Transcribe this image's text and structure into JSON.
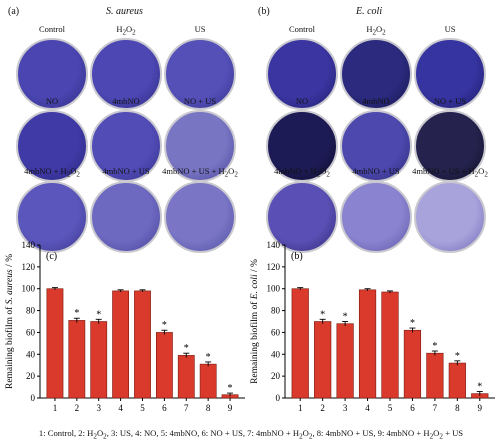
{
  "panels": [
    {
      "letter": "(a)",
      "title": "S. aureus",
      "wells": [
        {
          "label": "Control",
          "color": "#4a45b0",
          "edge": "#2f2c86"
        },
        {
          "label": "H2O2",
          "label_html": "H<sub>2</sub>O<sub>2</sub>",
          "color": "#4c47b3",
          "edge": "#2e2b82"
        },
        {
          "label": "US",
          "color": "#5550b8",
          "edge": "#34318c"
        },
        {
          "label": "NO",
          "color": "#3f3aa6",
          "edge": "#2a277d"
        },
        {
          "label": "4mbNO",
          "color": "#514cb6",
          "edge": "#34308a"
        },
        {
          "label": "NO + US",
          "color": "#7875c2",
          "edge": "#4a46a0"
        },
        {
          "label": "4mbNO + H2O2",
          "label_html": "4mbNO + H<sub>2</sub>O<sub>2</sub>",
          "color": "#5b56bb",
          "edge": "#3b378f"
        },
        {
          "label": "4mbNO + US",
          "color": "#6d69c0",
          "edge": "#47439b"
        },
        {
          "label": "4mbNO + US + H2O2",
          "label_html": "4mbNO + US + H<sub>2</sub>O<sub>2</sub>",
          "color": "#7a76c5",
          "edge": "#4f4ba2"
        }
      ]
    },
    {
      "letter": "(b)",
      "title": "E. coli",
      "wells": [
        {
          "label": "Control",
          "color": "#3a35a0",
          "edge": "#1f1c6e"
        },
        {
          "label": "H2O2",
          "label_html": "H<sub>2</sub>O<sub>2</sub>",
          "color": "#2b2a7e",
          "edge": "#17164c"
        },
        {
          "label": "US",
          "color": "#3634a0",
          "edge": "#1c1a62"
        },
        {
          "label": "NO",
          "color": "#1d1b55",
          "edge": "#0d0c2a"
        },
        {
          "label": "4mbNO",
          "color": "#4c48ad",
          "edge": "#2d2a7a"
        },
        {
          "label": "NO + US",
          "color": "#25234d",
          "edge": "#0f0e26"
        },
        {
          "label": "4mbNO + H2O2",
          "label_html": "4mbNO + H<sub>2</sub>O<sub>2</sub>",
          "color": "#5a4fb4",
          "edge": "#2f2a7a"
        },
        {
          "label": "4mbNO + US",
          "color": "#8a83cf",
          "edge": "#5c56a8"
        },
        {
          "label": "4mbNO + US + H2O2",
          "label_html": "4mbNO + US + H<sub>2</sub>O<sub>2</sub>",
          "color": "#a9a3dc",
          "edge": "#6e68b8"
        }
      ]
    }
  ],
  "chart_data": [
    {
      "type": "bar",
      "panel": "(c)",
      "categories": [
        "1",
        "2",
        "3",
        "4",
        "5",
        "6",
        "7",
        "8",
        "9"
      ],
      "values": [
        100,
        71,
        70,
        98,
        98,
        60,
        39,
        31,
        3
      ],
      "errors": [
        1.0,
        2.0,
        2.0,
        1.0,
        1.0,
        2.0,
        2.0,
        2.0,
        1.5
      ],
      "significant": [
        false,
        true,
        true,
        false,
        false,
        true,
        true,
        true,
        true
      ],
      "ylabel": "Remaining biofilm of S. aureus / %",
      "ylabel_html": "Remaining biofilm of <tspan font-style='italic'>S. aureus</tspan> / %",
      "ylim": [
        0,
        140
      ],
      "yticks": [
        0,
        20,
        40,
        60,
        80,
        100,
        120,
        140
      ],
      "bar_color": "#d93a2b",
      "sig_marker": "*",
      "grid": false
    },
    {
      "type": "bar",
      "panel": "(b)",
      "categories": [
        "1",
        "2",
        "3",
        "4",
        "5",
        "6",
        "7",
        "8",
        "9"
      ],
      "values": [
        100,
        70,
        68,
        99,
        97,
        62,
        41,
        32,
        4
      ],
      "errors": [
        1.0,
        2.0,
        2.0,
        1.0,
        1.0,
        2.0,
        2.0,
        2.0,
        2.0
      ],
      "significant": [
        false,
        true,
        true,
        false,
        false,
        true,
        true,
        true,
        true
      ],
      "ylabel": "Remaining biofilm of E. coli / %",
      "ylabel_html": "Remaining biofilm of <tspan font-style='italic'>E. coli</tspan> / %",
      "ylim": [
        0,
        140
      ],
      "yticks": [
        0,
        20,
        40,
        60,
        80,
        100,
        120,
        140
      ],
      "bar_color": "#d93a2b",
      "sig_marker": "*",
      "grid": false
    }
  ],
  "legend": {
    "text": "1: Control, 2: H2O2, 3: US, 4: NO, 5: 4mbNO, 6: NO + US, 7: 4mbNO + H2O2, 8: 4mbNO + US, 9: 4mbNO + H2O2 + US",
    "html": "1: Control, 2: H<sub>2</sub>O<sub>2</sub>, 3: US, 4: NO, 5: 4mbNO, 6: NO + US, 7: 4mbNO + H<sub>2</sub>O<sub>2</sub>, 8: 4mbNO + US, 9: 4mbNO + H<sub>2</sub>O<sub>2</sub> + US"
  }
}
